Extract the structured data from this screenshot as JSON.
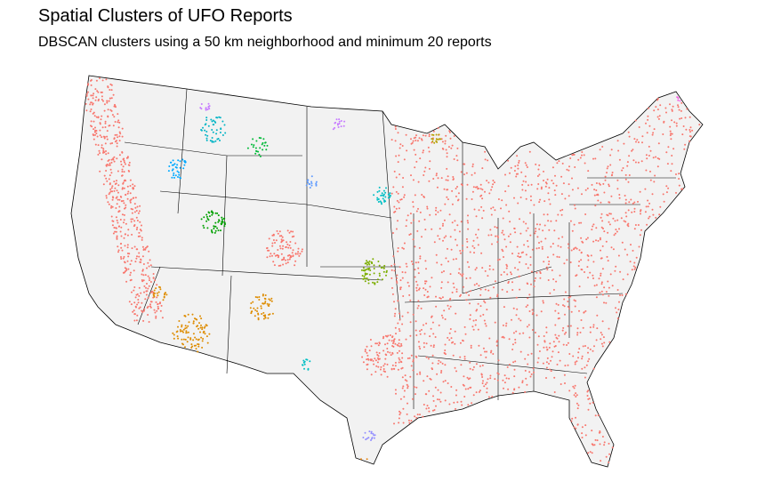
{
  "title": "Spatial Clusters of UFO Reports",
  "subtitle": "DBSCAN clusters using a 50 km neighborhood and minimum 20 reports"
}
